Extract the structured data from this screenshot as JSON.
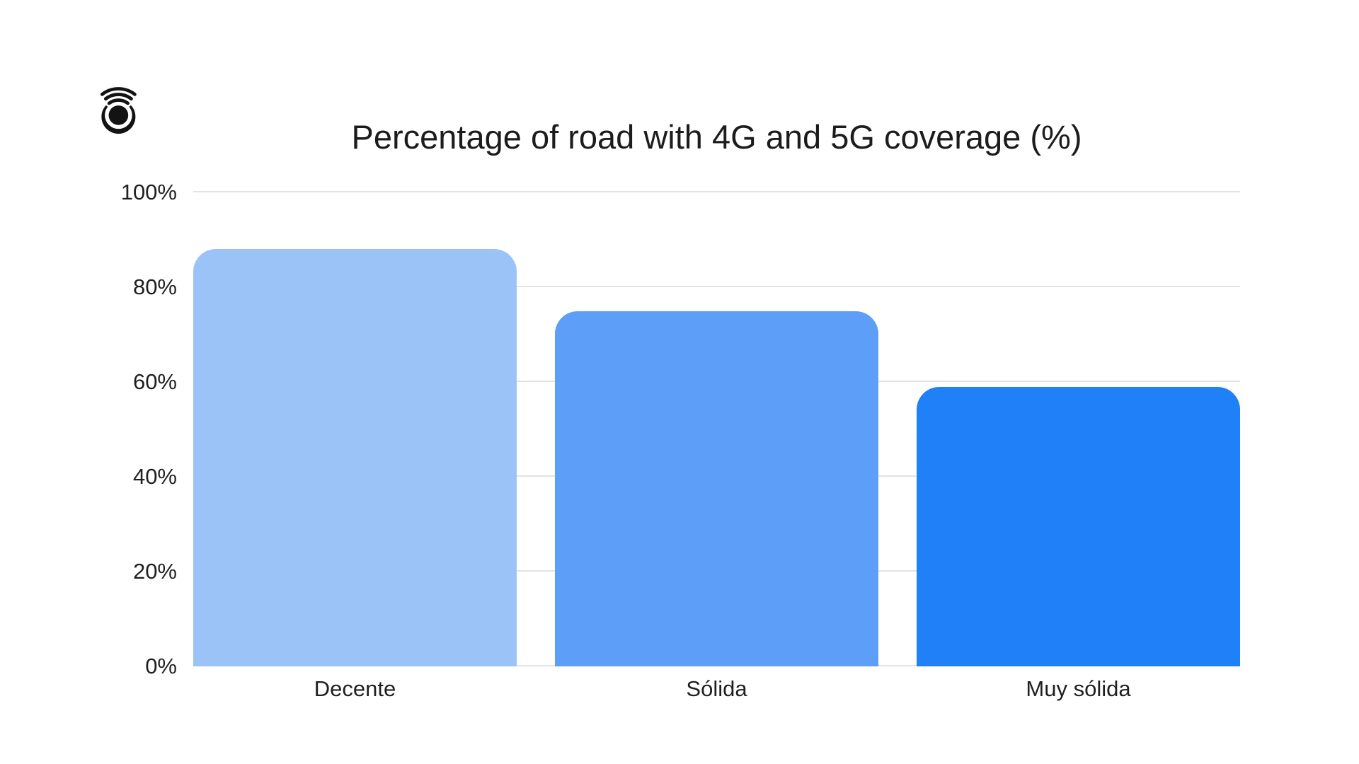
{
  "page": {
    "background": "#ffffff"
  },
  "logo": {
    "description": "black circular target with three wifi signal arcs",
    "color": "#131313"
  },
  "chart_data": {
    "type": "bar",
    "title": "Percentage of road with 4G and 5G coverage (%)",
    "categories": [
      "Decente",
      "Sólida",
      "Muy sólida"
    ],
    "values": [
      88,
      75,
      59
    ],
    "unit": "%",
    "bar_colors": [
      "#9cc3f8",
      "#5c9ef8",
      "#2080f8"
    ],
    "xlabel": "",
    "ylabel": "",
    "ylim": [
      0,
      100
    ],
    "yticks": [
      0,
      20,
      40,
      60,
      80,
      100
    ],
    "ytick_labels": [
      "0%",
      "20%",
      "40%",
      "60%",
      "80%",
      "100%"
    ],
    "grid": "horizontal",
    "gridline_color": "#e3e3e3",
    "text_color": "#1f1f1f",
    "legend_position": "none",
    "bar_corner_radius_px": 32
  }
}
